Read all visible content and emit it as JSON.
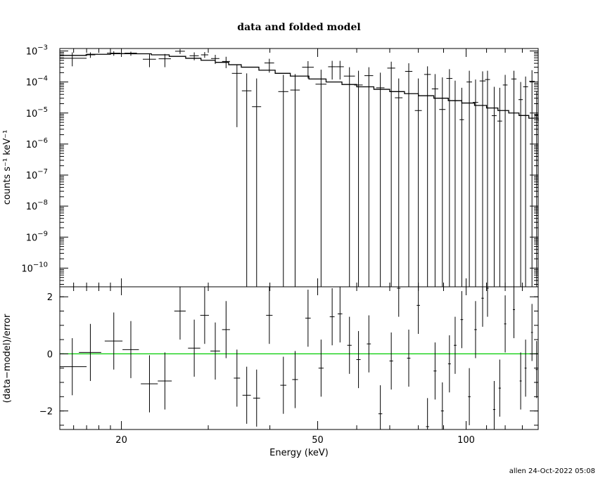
{
  "chart_data": [
    {
      "type": "scatter",
      "panel": "top",
      "title": "data and folded model",
      "xlabel": "",
      "ylabel": "counts s⁻¹ keV⁻¹",
      "x_scale": "log",
      "y_scale": "log",
      "xlim": [
        15,
        140
      ],
      "ylim": [
        2.5e-11,
        0.0012
      ],
      "y_ticks": [
        {
          "value": 0.001,
          "base": "10",
          "exp": "−3"
        },
        {
          "value": 0.0001,
          "base": "10",
          "exp": "−4"
        },
        {
          "value": 1e-05,
          "base": "10",
          "exp": "−5"
        },
        {
          "value": 1e-06,
          "base": "10",
          "exp": "−6"
        },
        {
          "value": 1e-07,
          "base": "10",
          "exp": "−7"
        },
        {
          "value": 1e-08,
          "base": "10",
          "exp": "−8"
        },
        {
          "value": 1e-09,
          "base": "10",
          "exp": "−9"
        },
        {
          "value": 1e-10,
          "base": "10",
          "exp": "−10"
        }
      ],
      "series": [
        {
          "type": "errorbar",
          "points": [
            [
              15.9,
              0.00058,
              1.1,
              0.0009,
              0.00032
            ],
            [
              17.3,
              0.00075,
              0.4,
              0.0009,
              0.0006
            ],
            [
              19.3,
              0.00085,
              0.6,
              0.00098,
              0.0007
            ],
            [
              20.9,
              0.00085,
              0.6,
              0.00095,
              0.0007
            ],
            [
              22.8,
              0.00054,
              0.7,
              0.0008,
              0.0003
            ],
            [
              24.5,
              0.00056,
              0.7,
              0.0008,
              0.0003
            ],
            [
              26.3,
              0.00098,
              0.6,
              0.00115,
              0.0008
            ],
            [
              28.1,
              0.0007,
              0.6,
              0.0009,
              0.0005
            ],
            [
              29.5,
              0.00075,
              0.5,
              0.00092,
              0.0006
            ],
            [
              31.0,
              0.00057,
              0.6,
              0.00075,
              0.00038
            ],
            [
              32.6,
              0.00046,
              0.6,
              0.00065,
              0.00028
            ],
            [
              34.3,
              0.00019,
              0.8,
              0.00036,
              3.5e-06
            ],
            [
              35.9,
              5.2e-05,
              0.8,
              0.00019,
              2.5e-11
            ],
            [
              37.6,
              1.6e-05,
              0.8,
              0.00013,
              2.5e-11
            ],
            [
              39.9,
              0.00041,
              0.9,
              0.00056,
              0.0002
            ],
            [
              42.6,
              4.9e-05,
              1.0,
              0.00017,
              2.5e-11
            ],
            [
              45.0,
              5.5e-05,
              1.0,
              0.00018,
              2.5e-11
            ],
            [
              47.8,
              0.0003,
              1.3,
              0.00047,
              0.00013
            ],
            [
              50.8,
              8.5e-05,
              1.3,
              0.00025,
              2.5e-11
            ],
            [
              53.5,
              0.00031,
              1.0,
              0.00048,
              0.00012
            ],
            [
              55.5,
              0.00031,
              1.0,
              0.00048,
              0.00012
            ],
            [
              58.0,
              0.000155,
              1.5,
              0.0003,
              2.5e-11
            ],
            [
              60.5,
              8e-05,
              1.2,
              0.00023,
              2.5e-11
            ],
            [
              63.5,
              0.00016,
              1.3,
              0.0003,
              2.5e-11
            ],
            [
              67.0,
              6.5e-05,
              1.3,
              0.0002,
              2.5e-11
            ],
            [
              70.5,
              0.00028,
              1.3,
              0.00045,
              2.5e-11
            ],
            [
              73.0,
              3.1e-05,
              1.3,
              0.00013,
              2.5e-11
            ],
            [
              76.5,
              0.00022,
              1.3,
              0.0004,
              2.5e-11
            ],
            [
              80.0,
              1.2e-05,
              1.3,
              0.00013,
              2.5e-11
            ],
            [
              83.5,
              0.000175,
              1.3,
              0.00032,
              2.5e-11
            ],
            [
              86.5,
              6e-05,
              1.3,
              0.00018,
              2.5e-11
            ],
            [
              89.5,
              1.3e-05,
              1.3,
              0.00014,
              2.5e-11
            ],
            [
              92.5,
              0.00013,
              1.3,
              0.00026,
              2.5e-11
            ],
            [
              95.0,
              2.5e-05,
              1.0,
              0.00011,
              2.5e-11
            ],
            [
              98.0,
              6.1e-06,
              1.0,
              6.5e-05,
              2.5e-11
            ],
            [
              101.5,
              0.0001,
              1.3,
              0.00023,
              2.5e-11
            ],
            [
              104.5,
              2.2e-05,
              1.3,
              0.00012,
              2.5e-11
            ],
            [
              108.0,
              0.000108,
              1.5,
              0.00022,
              2.5e-11
            ],
            [
              110.5,
              0.00012,
              1.3,
              0.00023,
              2.5e-11
            ],
            [
              114.0,
              8.2e-06,
              1.3,
              7e-05,
              2.5e-11
            ],
            [
              117.0,
              5.5e-06,
              1.3,
              6.5e-05,
              2.5e-11
            ],
            [
              120.0,
              8e-05,
              1.3,
              0.00017,
              2.5e-11
            ],
            [
              125.0,
              0.000125,
              1.5,
              0.00023,
              2.5e-11
            ],
            [
              129.0,
              2.7e-05,
              1.3,
              0.0001,
              2.5e-11
            ],
            [
              132.0,
              7e-05,
              1.5,
              0.00015,
              2.5e-11
            ],
            [
              136.0,
              0.000105,
              1.8,
              0.00024,
              2.5e-11
            ],
            [
              139.0,
              8.5e-06,
              1.3,
              5e-05,
              2.5e-11
            ]
          ]
        },
        {
          "type": "model-step",
          "points": [
            [
              15,
              0.00072
            ],
            [
              17,
              0.00078
            ],
            [
              19,
              0.00082
            ],
            [
              21,
              0.00081
            ],
            [
              23,
              0.00075
            ],
            [
              25,
              0.00067
            ],
            [
              27,
              0.00058
            ],
            [
              29,
              0.0005
            ],
            [
              31,
              0.00043
            ],
            [
              33,
              0.00036
            ],
            [
              35,
              0.0003
            ],
            [
              38,
              0.00024
            ],
            [
              41,
              0.00019
            ],
            [
              44,
              0.000155
            ],
            [
              48,
              0.000125
            ],
            [
              52,
              0.0001
            ],
            [
              56,
              8.3e-05
            ],
            [
              60,
              7e-05
            ],
            [
              65,
              5.8e-05
            ],
            [
              70,
              4.9e-05
            ],
            [
              75,
              4.2e-05
            ],
            [
              80,
              3.6e-05
            ],
            [
              86,
              3e-05
            ],
            [
              92,
              2.5e-05
            ],
            [
              98,
              2.1e-05
            ],
            [
              104,
              1.75e-05
            ],
            [
              110,
              1.45e-05
            ],
            [
              116,
              1.2e-05
            ],
            [
              122,
              1e-05
            ],
            [
              128,
              8.3e-06
            ],
            [
              134,
              6.8e-06
            ],
            [
              140,
              5.5e-06
            ]
          ]
        }
      ]
    },
    {
      "type": "scatter",
      "panel": "bottom",
      "xlabel": "Energy (keV)",
      "ylabel": "(data−model)/error",
      "x_scale": "log",
      "y_scale": "linear",
      "xlim": [
        15,
        140
      ],
      "ylim": [
        -2.65,
        2.35
      ],
      "x_ticks": [
        {
          "value": 20,
          "label": "20"
        },
        {
          "value": 50,
          "label": "50"
        },
        {
          "value": 100,
          "label": "100"
        }
      ],
      "y_ticks": [
        {
          "value": 2,
          "label": "2"
        },
        {
          "value": 0,
          "label": "0"
        },
        {
          "value": -2,
          "label": "−2"
        }
      ],
      "reference_line": {
        "y": 0,
        "color": "#00cc00"
      },
      "series": [
        {
          "type": "errorbar",
          "points": [
            [
              15.9,
              -0.45,
              1.1,
              1.0
            ],
            [
              17.3,
              0.05,
              0.9,
              1.0
            ],
            [
              19.3,
              0.45,
              0.8,
              1.0
            ],
            [
              20.9,
              0.15,
              0.8,
              1.0
            ],
            [
              22.8,
              -1.05,
              0.9,
              1.0
            ],
            [
              24.5,
              -0.95,
              0.8,
              1.0
            ],
            [
              26.3,
              1.5,
              0.7,
              1.0
            ],
            [
              28.1,
              0.2,
              0.8,
              1.0
            ],
            [
              29.5,
              1.35,
              0.6,
              1.0
            ],
            [
              31.0,
              0.1,
              0.7,
              1.0
            ],
            [
              32.6,
              0.85,
              0.6,
              1.0
            ],
            [
              34.3,
              -0.85,
              0.5,
              1.0
            ],
            [
              35.9,
              -1.45,
              0.7,
              1.0
            ],
            [
              37.6,
              -1.55,
              0.6,
              1.0
            ],
            [
              39.9,
              1.35,
              0.6,
              1.0
            ],
            [
              42.6,
              -1.1,
              0.6,
              1.0
            ],
            [
              45.0,
              -0.9,
              0.6,
              1.0
            ],
            [
              47.8,
              1.25,
              0.6,
              1.0
            ],
            [
              50.8,
              -0.5,
              0.6,
              1.0
            ],
            [
              53.5,
              1.3,
              0.6,
              1.0
            ],
            [
              55.5,
              1.4,
              0.6,
              1.0
            ],
            [
              58.0,
              0.3,
              0.6,
              1.0
            ],
            [
              60.5,
              -0.2,
              0.6,
              1.0
            ],
            [
              63.5,
              0.35,
              0.6,
              1.0
            ],
            [
              67.0,
              -2.1,
              0.6,
              1.0
            ],
            [
              70.5,
              -0.25,
              0.6,
              1.0
            ],
            [
              73.0,
              2.3,
              0.6,
              1.0
            ],
            [
              76.5,
              -0.15,
              0.6,
              1.0
            ],
            [
              80.0,
              1.7,
              0.6,
              1.0
            ],
            [
              83.5,
              -2.55,
              0.6,
              1.0
            ],
            [
              86.5,
              -0.6,
              0.6,
              1.0
            ],
            [
              89.5,
              -2.0,
              0.6,
              1.0
            ],
            [
              92.5,
              -0.35,
              0.6,
              1.0
            ],
            [
              95.0,
              0.3,
              0.6,
              1.0
            ],
            [
              98.0,
              1.2,
              0.6,
              1.0
            ],
            [
              101.5,
              -1.5,
              0.6,
              1.0
            ],
            [
              104.5,
              0.85,
              0.6,
              1.0
            ],
            [
              108.0,
              1.95,
              0.6,
              1.0
            ],
            [
              110.5,
              2.3,
              0.6,
              1.0
            ],
            [
              114.0,
              -1.95,
              0.6,
              1.0
            ],
            [
              117.0,
              -1.2,
              0.6,
              1.0
            ],
            [
              120.0,
              1.05,
              0.6,
              1.0
            ],
            [
              125.0,
              1.55,
              0.6,
              1.0
            ],
            [
              129.0,
              -0.95,
              0.6,
              1.0
            ],
            [
              132.0,
              -0.5,
              0.6,
              1.0
            ],
            [
              136.0,
              0.75,
              0.6,
              1.0
            ],
            [
              139.0,
              -0.55,
              0.6,
              1.0
            ]
          ]
        }
      ]
    }
  ],
  "footer": "allen 24-Oct-2022 05:08",
  "colors": {
    "axes": "#000000",
    "data": "#000000",
    "zero_line": "#00cc00"
  }
}
